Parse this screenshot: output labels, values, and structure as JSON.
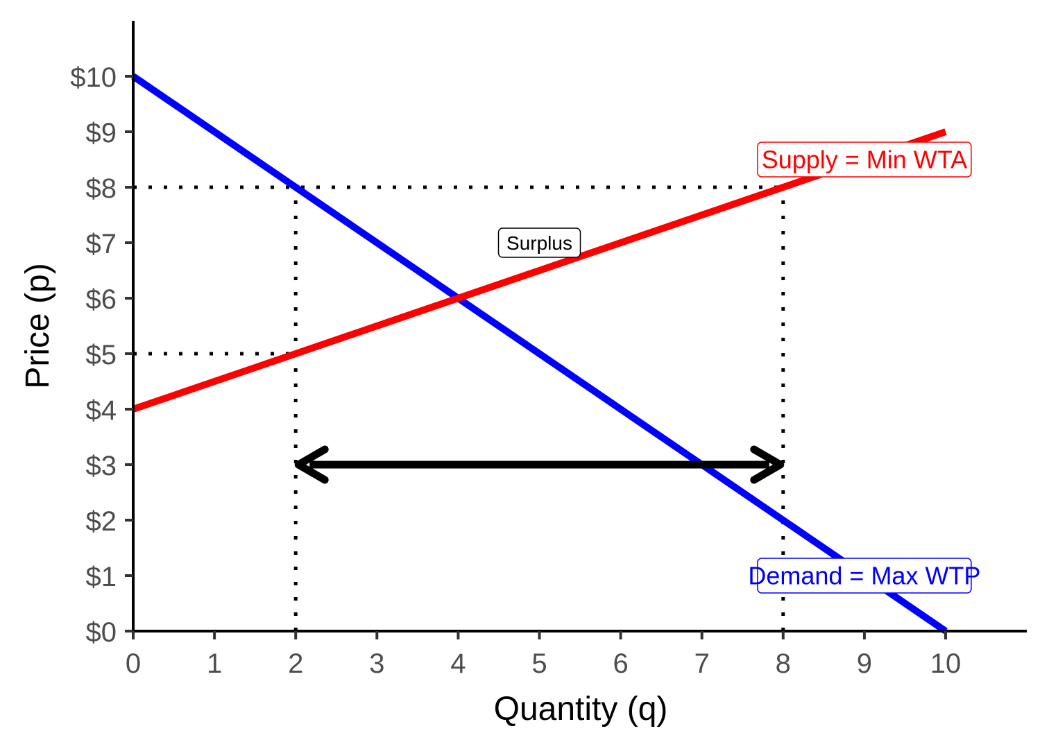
{
  "chart_data": {
    "type": "line",
    "xlabel": "Quantity (q)",
    "ylabel": "Price (p)",
    "xlim": [
      0,
      11
    ],
    "ylim": [
      0,
      11
    ],
    "x_ticks": [
      0,
      1,
      2,
      3,
      4,
      5,
      6,
      7,
      8,
      9,
      10
    ],
    "x_tick_labels": [
      "0",
      "1",
      "2",
      "3",
      "4",
      "5",
      "6",
      "7",
      "8",
      "9",
      "10"
    ],
    "y_ticks": [
      0,
      1,
      2,
      3,
      4,
      5,
      6,
      7,
      8,
      9,
      10
    ],
    "y_tick_labels": [
      "$0",
      "$1",
      "$2",
      "$3",
      "$4",
      "$5",
      "$6",
      "$7",
      "$8",
      "$9",
      "$10"
    ],
    "grid": false,
    "series": [
      {
        "name": "Demand",
        "color": "#0000ff",
        "x": [
          0,
          10
        ],
        "y": [
          10,
          0
        ]
      },
      {
        "name": "Supply",
        "color": "#ff0000",
        "x": [
          0,
          10
        ],
        "y": [
          4,
          9
        ]
      }
    ],
    "reference_lines": [
      {
        "type": "horizontal",
        "y": 8,
        "x_from": 0,
        "x_to": 8
      },
      {
        "type": "horizontal",
        "y": 5,
        "x_from": 0,
        "x_to": 2
      },
      {
        "type": "vertical",
        "x": 2,
        "y_from": 0,
        "y_to": 8
      },
      {
        "type": "vertical",
        "x": 8,
        "y_from": 0,
        "y_to": 8
      }
    ],
    "arrow": {
      "y": 3,
      "x_from": 2,
      "x_to": 8,
      "double_headed": true
    },
    "annotations": [
      {
        "text": "Supply = Min WTA",
        "x": 9.0,
        "y": 8.5,
        "color": "#ff0000"
      },
      {
        "text": "Surplus",
        "x": 5.0,
        "y": 7.0,
        "color": "#000000"
      },
      {
        "text": "Demand = Max WTP",
        "x": 9.0,
        "y": 1.0,
        "color": "#0000ff"
      }
    ]
  }
}
